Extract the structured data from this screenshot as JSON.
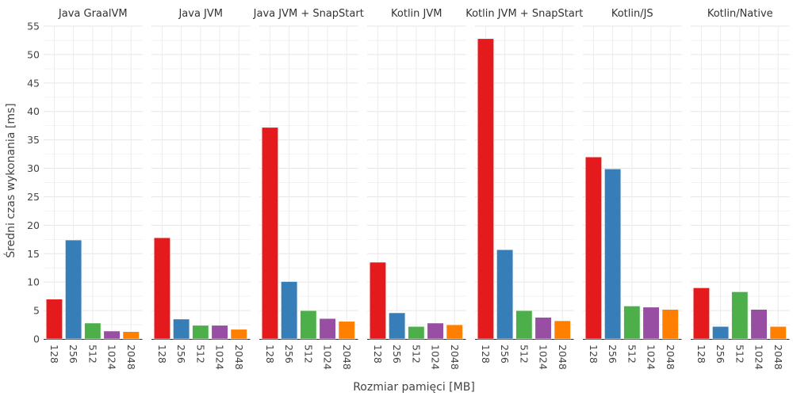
{
  "chart_data": {
    "type": "bar",
    "xlabel": "Rozmiar pamięci [MB]",
    "ylabel": "Średni czas wykonania [ms]",
    "ylim": [
      0,
      55
    ],
    "yticks": [
      0,
      5,
      10,
      15,
      20,
      25,
      30,
      35,
      40,
      45,
      50,
      55
    ],
    "categories": [
      "128",
      "256",
      "512",
      "1024",
      "2048"
    ],
    "colors": [
      "#e41a1c",
      "#377eb8",
      "#4daf4a",
      "#984ea3",
      "#ff7f00"
    ],
    "grid": true,
    "panels": [
      {
        "title": "Java GraalVM",
        "values": [
          7.0,
          17.4,
          2.8,
          1.4,
          1.3
        ]
      },
      {
        "title": "Java JVM",
        "values": [
          17.8,
          3.5,
          2.4,
          2.4,
          1.7
        ]
      },
      {
        "title": "Java JVM + SnapStart",
        "values": [
          37.2,
          10.1,
          5.0,
          3.6,
          3.1
        ]
      },
      {
        "title": "Kotlin JVM",
        "values": [
          13.5,
          4.6,
          2.2,
          2.8,
          2.5
        ]
      },
      {
        "title": "Kotlin JVM + SnapStart",
        "values": [
          52.8,
          15.7,
          5.0,
          3.8,
          3.2
        ]
      },
      {
        "title": "Kotlin/JS",
        "values": [
          32.0,
          29.9,
          5.8,
          5.6,
          5.2
        ]
      },
      {
        "title": "Kotlin/Native",
        "values": [
          9.0,
          2.2,
          8.3,
          5.2,
          2.2
        ]
      }
    ]
  }
}
